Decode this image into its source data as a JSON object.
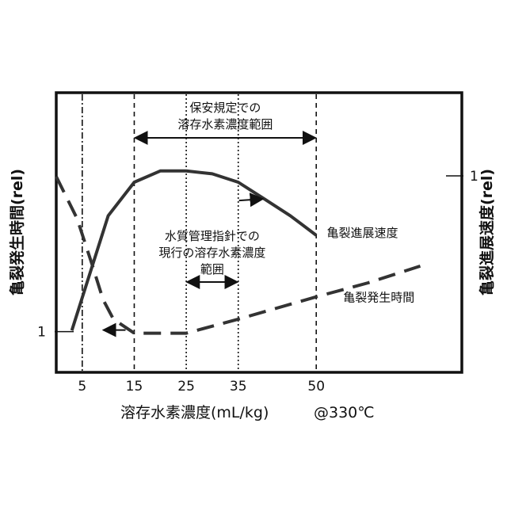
{
  "chart_data": {
    "type": "line",
    "xlabel": "溶存水素濃度(mL/kg)",
    "condition": "@330℃",
    "ylabel_left": "亀裂発生時間(rel)",
    "ylabel_right": "亀裂進展速度(rel)",
    "x_ticks": [
      5,
      15,
      25,
      35,
      50
    ],
    "left_y_tick": "1",
    "right_y_tick": "1",
    "xlim": [
      0,
      78
    ],
    "ylim": [
      0,
      1
    ],
    "grid": false,
    "legend": "none",
    "series": [
      {
        "name": "亀裂進展速度",
        "style": "solid",
        "arrow": "right",
        "x": [
          3,
          10,
          15,
          20,
          25,
          30,
          35,
          40,
          45,
          50
        ],
        "y": [
          0.15,
          0.56,
          0.68,
          0.72,
          0.72,
          0.71,
          0.68,
          0.62,
          0.56,
          0.49
        ]
      },
      {
        "name": "亀裂発生時間",
        "style": "dashed",
        "arrow": "left",
        "x": [
          0,
          4,
          7,
          9,
          11,
          15,
          20,
          25,
          35,
          50,
          60,
          70
        ],
        "y": [
          0.7,
          0.55,
          0.38,
          0.26,
          0.19,
          0.14,
          0.14,
          0.14,
          0.19,
          0.27,
          0.32,
          0.38
        ]
      }
    ],
    "vertical_lines": [
      {
        "x": 5,
        "style": "dashdot"
      },
      {
        "x": 15,
        "style": "dashed"
      },
      {
        "x": 25,
        "style": "dotted"
      },
      {
        "x": 35,
        "style": "dotted"
      },
      {
        "x": 50,
        "style": "dashed"
      }
    ],
    "annotations": [
      {
        "lines": [
          "保安規定での",
          "溶存水素濃度範囲"
        ],
        "range": [
          15,
          50
        ]
      },
      {
        "lines": [
          "水質管理指針での",
          "現行の溶存水素濃度",
          "範囲"
        ],
        "range": [
          25,
          35
        ]
      }
    ]
  }
}
